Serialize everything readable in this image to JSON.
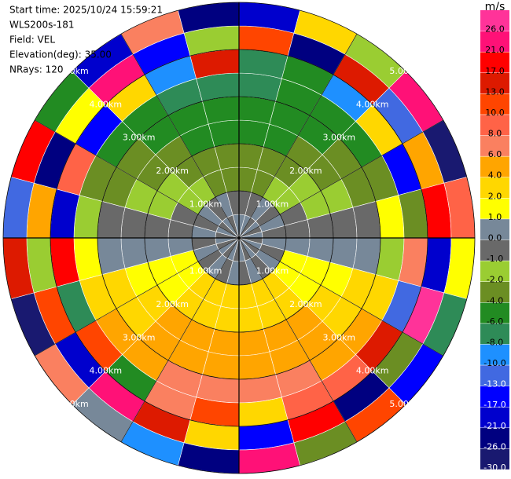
{
  "chart_data": {
    "type": "ppi",
    "info": [
      "Start time: 2025/10/24 15:59:21",
      "WLS200s-181",
      "Field: VEL",
      "Elevation(deg): 35.00",
      "NRays: 120"
    ],
    "rings": [
      {
        "value": 1,
        "label": "1.00km"
      },
      {
        "value": 2,
        "label": "2.00km"
      },
      {
        "value": 3,
        "label": "3.00km"
      },
      {
        "value": 4,
        "label": "4.00km"
      },
      {
        "value": 5,
        "label": "5.00km"
      }
    ],
    "azimuth_bins": [
      0,
      15,
      30,
      45,
      60,
      75,
      90,
      105,
      120,
      135,
      150,
      165,
      180,
      195,
      210,
      225,
      240,
      255,
      270,
      285,
      300,
      315,
      330,
      345,
      360
    ],
    "range_bins": [
      0,
      0.5,
      1,
      1.5,
      2,
      2.5,
      3,
      3.5,
      4,
      4.5,
      5
    ],
    "values": [
      [
        0.4,
        -0.5,
        -2.5,
        -3.0,
        -5.0,
        -5.2,
        -6.5,
        -7.5,
        12.0,
        -18.0
      ],
      [
        0.3,
        -0.6,
        -2.3,
        -2.8,
        -4.6,
        -4.9,
        -6.0,
        -5.0,
        -24.0,
        3.0
      ],
      [
        -0.2,
        0.5,
        -2.0,
        -2.4,
        -4.0,
        -4.3,
        -5.5,
        -9.0,
        15.0,
        -1.5
      ],
      [
        0.6,
        -0.3,
        -1.5,
        -1.8,
        -3.1,
        -3.3,
        -4.5,
        2.5,
        -12.0,
        22.0
      ],
      [
        -0.4,
        0.2,
        -0.9,
        -1.2,
        -1.9,
        -2.2,
        -2.8,
        -15.0,
        5.0,
        -27.0
      ],
      [
        0.5,
        -0.6,
        -0.4,
        -0.5,
        -0.7,
        -0.8,
        1.5,
        -3.0,
        18.0,
        9.0
      ],
      [
        -0.3,
        0.4,
        0.3,
        0.5,
        0.7,
        0.9,
        -1.5,
        7.0,
        -20.0,
        1.5
      ],
      [
        0.2,
        -0.5,
        1.0,
        1.3,
        1.9,
        2.1,
        3.0,
        -11.0,
        27.0,
        -7.0
      ],
      [
        -0.6,
        0.3,
        1.5,
        1.8,
        3.1,
        3.3,
        4.5,
        14.0,
        -3.0,
        -16.0
      ],
      [
        0.5,
        -0.2,
        2.0,
        2.5,
        4.0,
        4.3,
        5.5,
        8.5,
        -25.0,
        11.0
      ],
      [
        -0.4,
        0.6,
        2.3,
        2.8,
        4.6,
        5.0,
        6.5,
        9.0,
        19.0,
        -2.5
      ],
      [
        0.3,
        -0.4,
        2.5,
        3.0,
        5.0,
        5.3,
        7.0,
        3.5,
        -14.0,
        24.0
      ],
      [
        -0.5,
        0.5,
        2.5,
        3.1,
        5.1,
        5.4,
        7.2,
        11.0,
        2.0,
        -22.0
      ],
      [
        0.6,
        -0.3,
        2.3,
        2.8,
        4.7,
        5.0,
        6.4,
        7.5,
        16.0,
        -9.0
      ],
      [
        -0.2,
        0.4,
        2.0,
        2.4,
        4.0,
        4.2,
        5.5,
        -5.0,
        23.0,
        0.5
      ],
      [
        0.4,
        -0.6,
        1.6,
        1.9,
        3.1,
        3.3,
        4.3,
        12.0,
        -18.0,
        6.5
      ],
      [
        -0.5,
        0.3,
        1.0,
        1.2,
        1.9,
        2.0,
        2.7,
        -7.5,
        10.5,
        -28.0
      ],
      [
        0.3,
        -0.2,
        0.4,
        0.5,
        0.7,
        0.8,
        1.2,
        20.0,
        -1.5,
        14.0
      ],
      [
        -0.6,
        0.5,
        -0.4,
        -0.5,
        -0.7,
        -0.8,
        -1.5,
        -19.0,
        4.5,
        -12.0
      ],
      [
        0.5,
        -0.4,
        -1.0,
        -1.2,
        -1.9,
        -2.1,
        -2.8,
        9.5,
        -23.0,
        17.0
      ],
      [
        -0.3,
        0.6,
        -1.5,
        -1.9,
        -3.0,
        -3.3,
        -4.4,
        -14.5,
        1.5,
        -6.0
      ],
      [
        0.4,
        -0.5,
        -2.0,
        -2.4,
        -4.0,
        -4.2,
        -5.6,
        3.0,
        25.0,
        -19.0
      ],
      [
        -0.2,
        0.3,
        -2.3,
        -2.8,
        -4.6,
        -4.9,
        -6.3,
        -9.5,
        -15.0,
        7.0
      ],
      [
        0.5,
        -0.6,
        -2.5,
        -3.0,
        -5.0,
        -5.3,
        -7.0,
        16.0,
        -2.0,
        -24.5
      ]
    ],
    "colorbar": {
      "label": "m/s",
      "lim": [
        -30,
        30
      ],
      "ticks": [
        {
          "value": 26,
          "label": "26.0"
        },
        {
          "value": 21,
          "label": "21.0"
        },
        {
          "value": 17,
          "label": "17.0"
        },
        {
          "value": 13,
          "label": "13.0"
        },
        {
          "value": 10,
          "label": "10.0"
        },
        {
          "value": 8,
          "label": "8.0"
        },
        {
          "value": 6,
          "label": "6.0"
        },
        {
          "value": 4,
          "label": "4.0"
        },
        {
          "value": 2,
          "label": "2.0"
        },
        {
          "value": 1,
          "label": "1.0"
        },
        {
          "value": 0,
          "label": "0.0"
        },
        {
          "value": -1,
          "label": "-1.0"
        },
        {
          "value": -2,
          "label": "-2.0"
        },
        {
          "value": -4,
          "label": "-4.0"
        },
        {
          "value": -6,
          "label": "-6.0"
        },
        {
          "value": -8,
          "label": "-8.0"
        },
        {
          "value": -10,
          "label": "-10.0"
        },
        {
          "value": -13,
          "label": "-13.0"
        },
        {
          "value": -17,
          "label": "-17.0"
        },
        {
          "value": -21,
          "label": "-21.0"
        },
        {
          "value": -26,
          "label": "-26.0"
        },
        {
          "value": -30,
          "label": "-30.0"
        }
      ],
      "colors": [
        "#ff3399",
        "#ff1177",
        "#ff0000",
        "#dd1a00",
        "#ff4500",
        "#ff6347",
        "#fa8060",
        "#ffa500",
        "#ffd700",
        "#ffff00",
        "#778899",
        "#696969",
        "#9acd32",
        "#6b8e23",
        "#228b22",
        "#2e8b57",
        "#1e90ff",
        "#4169e1",
        "#0000ff",
        "#0000cd",
        "#000080",
        "#191970"
      ]
    }
  }
}
